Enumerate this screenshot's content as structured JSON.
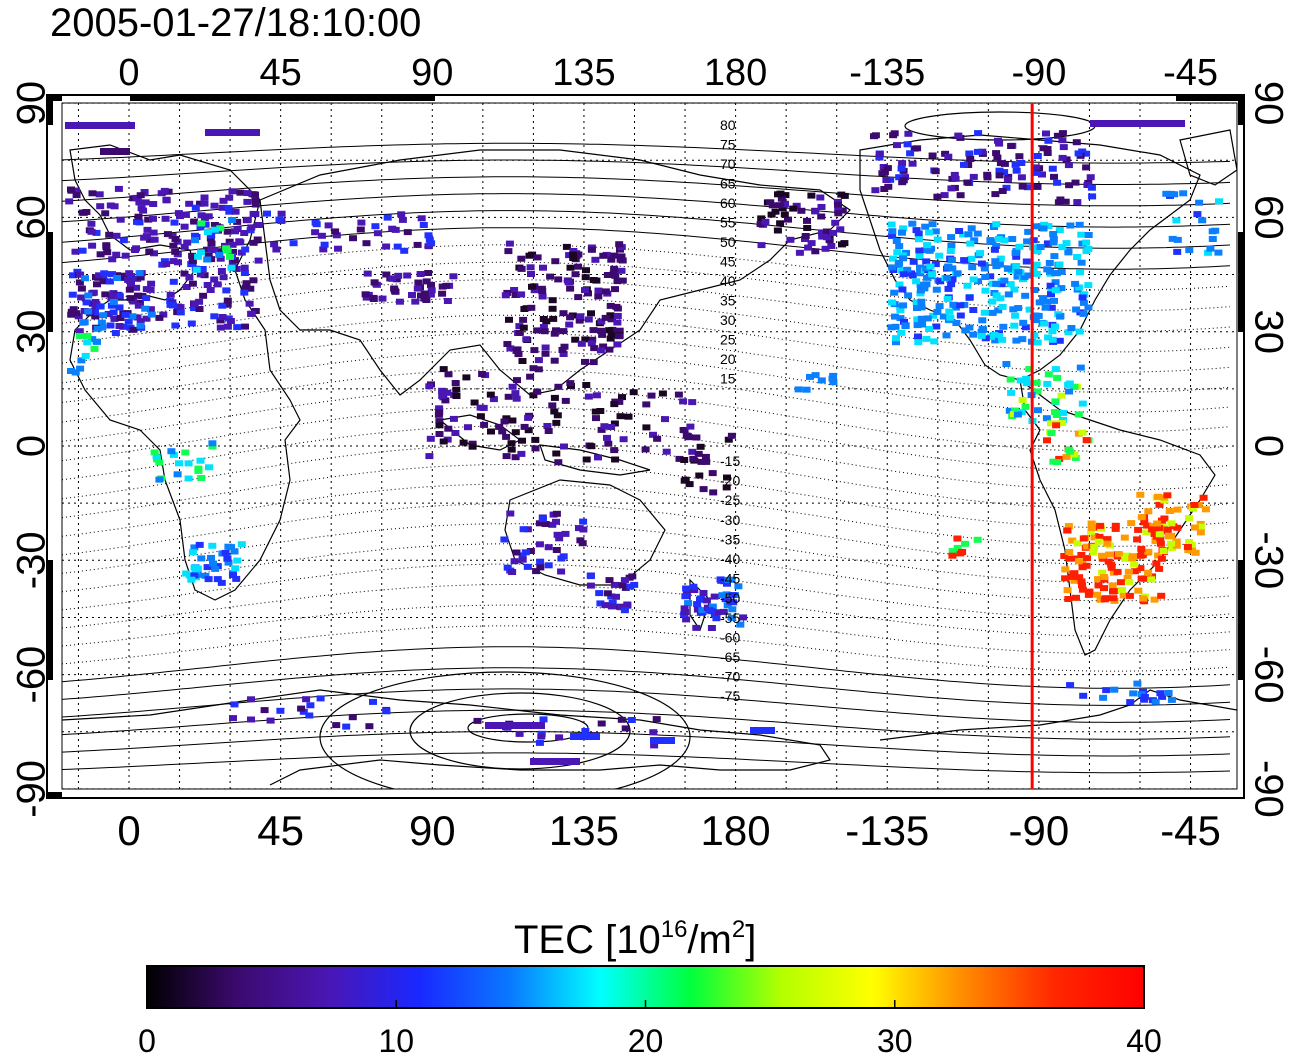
{
  "title": "2005-01-27/18:10:00",
  "colorbar": {
    "label_prefix": "TEC  [10",
    "label_exp1": "16",
    "label_mid": "/m",
    "label_exp2": "2",
    "label_suffix": "]",
    "ticks": [
      "0",
      "10",
      "20",
      "30",
      "40"
    ],
    "colors": [
      "#000000",
      "#3c0a6e",
      "#4a16b4",
      "#1a28ff",
      "#0a78ff",
      "#00ffff",
      "#00ff3c",
      "#b4ff00",
      "#ffff00",
      "#ff8c00",
      "#ff2800",
      "#ff0000"
    ]
  },
  "map": {
    "lon_tick_labels": [
      "0",
      "45",
      "90",
      "135",
      "180",
      "-135",
      "-90",
      "-45"
    ],
    "lat_tick_labels": [
      "90",
      "60",
      "30",
      "0",
      "-30",
      "-60",
      "-90"
    ],
    "magnetic_lat_labels_north": [
      "80",
      "75",
      "70",
      "65",
      "60",
      "55",
      "50",
      "45",
      "40",
      "35",
      "30",
      "25",
      "20",
      "15"
    ],
    "magnetic_lat_labels_south": [
      "-15",
      "-20",
      "-25",
      "-30",
      "-35",
      "-40",
      "-45",
      "-50",
      "-55",
      "-60",
      "-65",
      "-70",
      "-75"
    ],
    "red_meridian_lon": -92
  },
  "chart_data": {
    "type": "heatmap",
    "title": "2005-01-27/18:10:00",
    "xlabel": "",
    "ylabel": "",
    "colorbar_label": "TEC  [10^16/m^2]",
    "value_range": [
      0,
      40
    ],
    "x_ticks": [
      0,
      45,
      90,
      135,
      180,
      -135,
      -90,
      -45
    ],
    "y_ticks": [
      90,
      60,
      30,
      0,
      -30,
      -60,
      -90
    ],
    "ylim": [
      -90,
      90
    ],
    "grid": true
  }
}
